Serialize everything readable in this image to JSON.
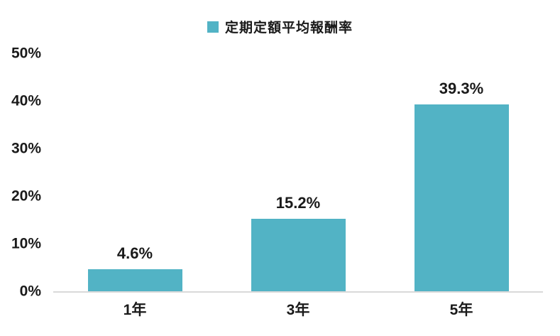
{
  "chart_data": {
    "type": "bar",
    "title": "",
    "legend": "定期定額平均報酬率",
    "legend_position": "top-center",
    "categories": [
      "1年",
      "3年",
      "5年"
    ],
    "values": [
      4.6,
      15.2,
      39.3
    ],
    "value_labels": [
      "4.6%",
      "15.2%",
      "39.3%"
    ],
    "yticks_bottom_up": [
      "0%",
      "10%",
      "20%",
      "30%",
      "40%",
      "50%"
    ],
    "ylim": [
      0,
      50
    ],
    "grid": false,
    "bar_color": "#52B3C5",
    "axis_line_color": "#D9D9D9",
    "text_color": "#1A1A1A"
  }
}
